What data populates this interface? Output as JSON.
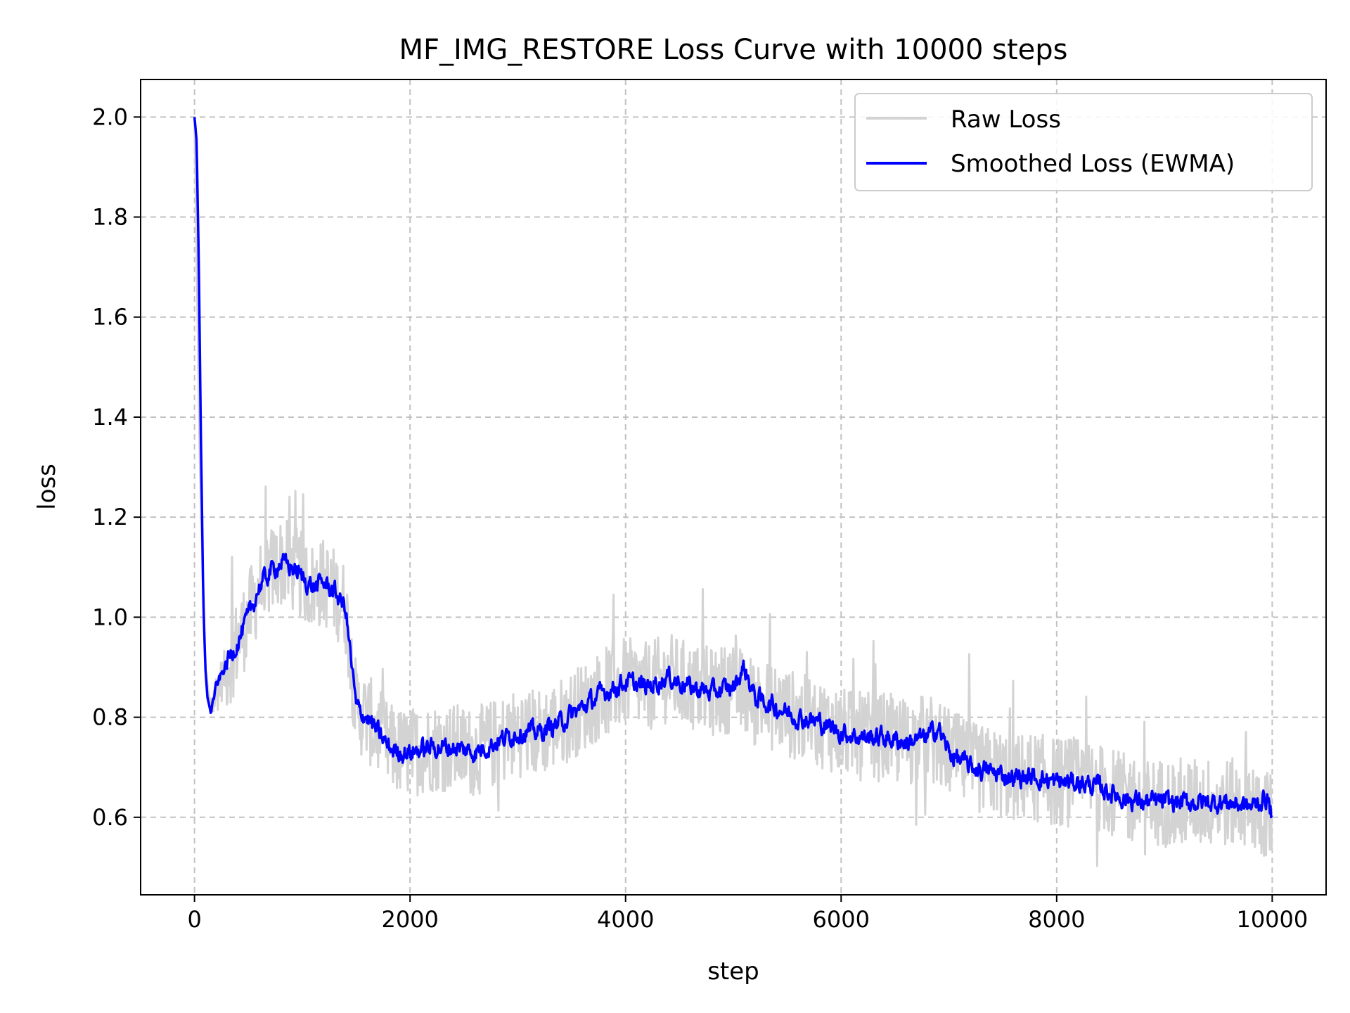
{
  "chart_data": {
    "type": "line",
    "title": "MF_IMG_RESTORE Loss Curve with 10000 steps",
    "xlabel": "step",
    "ylabel": "loss",
    "xlim": [
      -500,
      10500
    ],
    "ylim": [
      0.445,
      2.075
    ],
    "x_ticks": [
      0,
      2000,
      4000,
      6000,
      8000,
      10000
    ],
    "x_tick_labels": [
      "0",
      "2000",
      "4000",
      "6000",
      "8000",
      "10000"
    ],
    "y_ticks": [
      0.6,
      0.8,
      1.0,
      1.2,
      1.4,
      1.6,
      1.8,
      2.0
    ],
    "y_tick_labels": [
      "0.6",
      "0.8",
      "1.0",
      "1.2",
      "1.4",
      "1.6",
      "1.8",
      "2.0"
    ],
    "grid": true,
    "legend_position": "top-right",
    "colors": {
      "raw": "#d3d3d3",
      "smoothed": "#0000ff"
    },
    "series": [
      {
        "name": "Raw Loss",
        "color": "#d3d3d3",
        "x": [
          0,
          50,
          100,
          150,
          200,
          300,
          400,
          500,
          600,
          700,
          800,
          900,
          1000,
          1100,
          1200,
          1300,
          1400,
          1500,
          1600,
          1700,
          1800,
          1900,
          2000,
          2200,
          2400,
          2600,
          2800,
          3000,
          3200,
          3400,
          3600,
          3800,
          4000,
          4200,
          4400,
          4600,
          4800,
          5000,
          5200,
          5400,
          5600,
          5800,
          6000,
          6200,
          6400,
          6600,
          6800,
          7000,
          7200,
          7400,
          7600,
          7800,
          8000,
          8200,
          8400,
          8600,
          8800,
          9000,
          9200,
          9400,
          9600,
          9800,
          10000
        ],
        "values": [
          2.0,
          1.3,
          0.9,
          0.82,
          0.85,
          0.9,
          0.95,
          1.0,
          1.06,
          1.09,
          1.11,
          1.1,
          1.08,
          1.06,
          1.07,
          1.05,
          1.02,
          0.82,
          0.8,
          0.77,
          0.74,
          0.73,
          0.73,
          0.74,
          0.74,
          0.73,
          0.75,
          0.77,
          0.77,
          0.79,
          0.82,
          0.85,
          0.87,
          0.86,
          0.88,
          0.86,
          0.85,
          0.86,
          0.83,
          0.82,
          0.8,
          0.79,
          0.77,
          0.76,
          0.76,
          0.75,
          0.76,
          0.73,
          0.7,
          0.69,
          0.68,
          0.68,
          0.67,
          0.67,
          0.66,
          0.64,
          0.63,
          0.63,
          0.63,
          0.63,
          0.63,
          0.62,
          0.6
        ],
        "noise_amplitude": 0.09
      },
      {
        "name": "Smoothed Loss (EWMA)",
        "color": "#0000ff",
        "x": [
          0,
          20,
          40,
          60,
          80,
          100,
          120,
          150,
          200,
          300,
          400,
          500,
          600,
          700,
          800,
          900,
          1000,
          1100,
          1200,
          1300,
          1400,
          1500,
          1600,
          1700,
          1800,
          1900,
          2000,
          2200,
          2400,
          2600,
          2800,
          3000,
          3200,
          3400,
          3600,
          3800,
          4000,
          4200,
          4400,
          4600,
          4800,
          5000,
          5100,
          5200,
          5400,
          5600,
          5800,
          6000,
          6200,
          6400,
          6600,
          6800,
          6900,
          7000,
          7200,
          7400,
          7600,
          7800,
          8000,
          8200,
          8400,
          8600,
          8800,
          9000,
          9200,
          9400,
          9600,
          9800,
          9950,
          10000
        ],
        "values": [
          2.0,
          1.95,
          1.7,
          1.35,
          1.05,
          0.9,
          0.84,
          0.81,
          0.86,
          0.91,
          0.95,
          1.0,
          1.06,
          1.09,
          1.11,
          1.1,
          1.08,
          1.06,
          1.07,
          1.05,
          1.02,
          0.82,
          0.8,
          0.77,
          0.74,
          0.73,
          0.73,
          0.74,
          0.74,
          0.73,
          0.75,
          0.77,
          0.77,
          0.79,
          0.82,
          0.85,
          0.87,
          0.86,
          0.88,
          0.86,
          0.85,
          0.86,
          0.9,
          0.84,
          0.82,
          0.8,
          0.79,
          0.77,
          0.76,
          0.76,
          0.75,
          0.76,
          0.78,
          0.73,
          0.7,
          0.69,
          0.68,
          0.68,
          0.67,
          0.67,
          0.66,
          0.64,
          0.63,
          0.63,
          0.63,
          0.63,
          0.63,
          0.62,
          0.64,
          0.6
        ],
        "noise_amplitude": 0.035
      }
    ]
  }
}
